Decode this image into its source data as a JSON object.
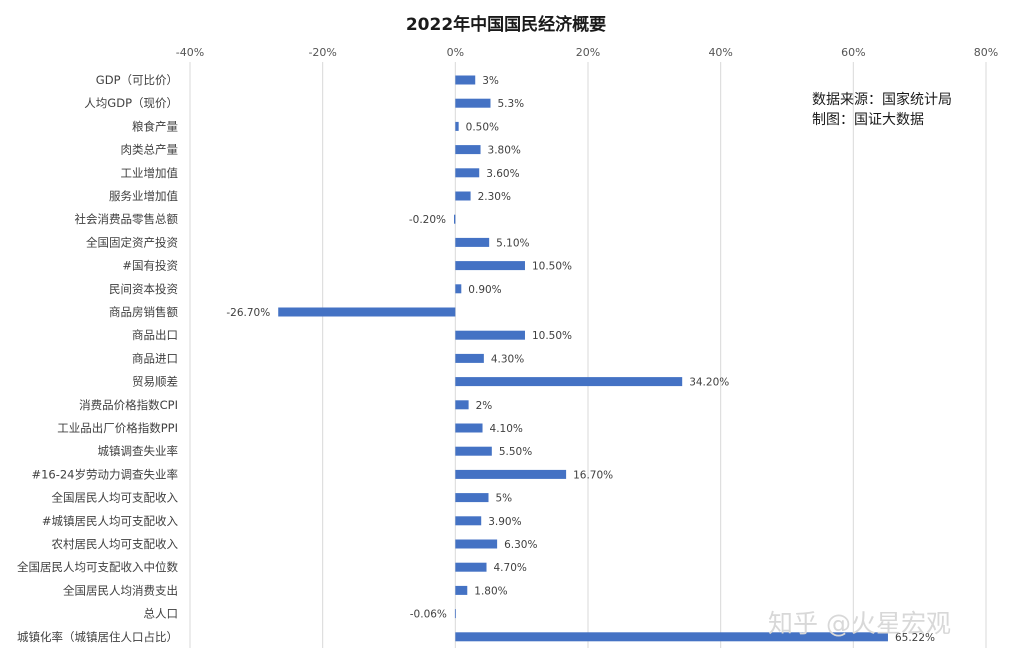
{
  "chart_data": {
    "type": "bar",
    "orientation": "horizontal",
    "title": "2022年中国国民经济概要",
    "xlim": [
      -40,
      80
    ],
    "x_ticks": [
      "-40%",
      "-20%",
      "0%",
      "20%",
      "40%",
      "60%",
      "80%"
    ],
    "tick_values": [
      -40,
      -20,
      0,
      20,
      40,
      60,
      80
    ],
    "axis_position": "top",
    "grid": true,
    "categories": [
      "GDP（可比价）",
      "人均GDP（现价）",
      "粮食产量",
      "肉类总产量",
      "工业增加值",
      "服务业增加值",
      "社会消费品零售总额",
      "全国固定资产投资",
      "#国有投资",
      "民间资本投资",
      "商品房销售额",
      "商品出口",
      "商品进口",
      "贸易顺差",
      "消费品价格指数CPI",
      "工业品出厂价格指数PPI",
      "城镇调查失业率",
      "#16-24岁劳动力调查失业率",
      "全国居民人均可支配收入",
      "#城镇居民人均可支配收入",
      "农村居民人均可支配收入",
      "全国居民人均可支配收入中位数",
      "全国居民人均消费支出",
      "总人口",
      "城镇化率（城镇居住人口占比）"
    ],
    "values": [
      3,
      5.3,
      0.5,
      3.8,
      3.6,
      2.3,
      -0.2,
      5.1,
      10.5,
      0.9,
      -26.7,
      10.5,
      4.3,
      34.2,
      2,
      4.1,
      5.5,
      16.7,
      5,
      3.9,
      6.3,
      4.7,
      1.8,
      -0.06,
      65.22
    ],
    "data_labels": [
      "3%",
      "5.3%",
      "0.50%",
      "3.80%",
      "3.60%",
      "2.30%",
      "-0.20%",
      "5.10%",
      "10.50%",
      "0.90%",
      "-26.70%",
      "10.50%",
      "4.30%",
      "34.20%",
      "2%",
      "4.10%",
      "5.50%",
      "16.70%",
      "5%",
      "3.90%",
      "6.30%",
      "4.70%",
      "1.80%",
      "-0.06%",
      "65.22%"
    ],
    "bar_color": "#4472C4",
    "grid_color": "#D9D9D9",
    "annotations": [
      "数据来源：国家统计局",
      "制图：国证大数据"
    ]
  },
  "watermark": "知乎 @火星宏观"
}
